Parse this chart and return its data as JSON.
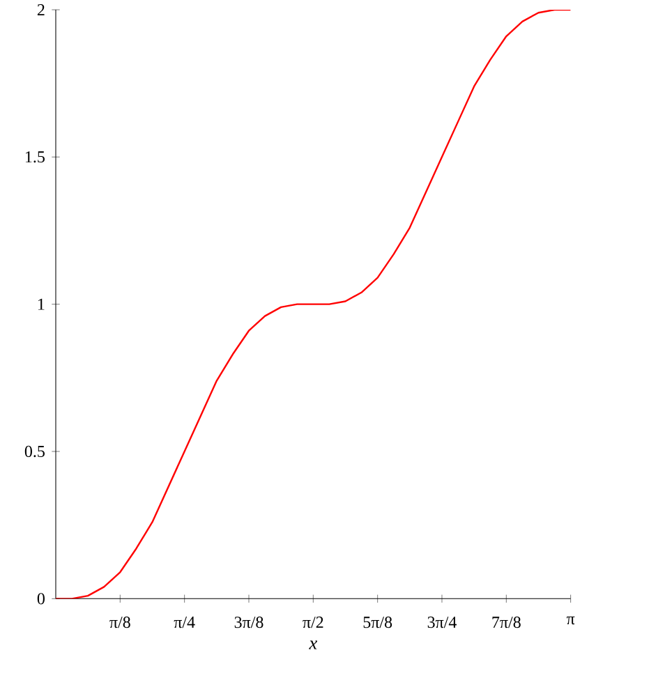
{
  "chart_data": {
    "type": "line",
    "xlabel": "x",
    "x": [
      0,
      0.0982,
      0.1963,
      0.2945,
      0.3927,
      0.4909,
      0.589,
      0.6872,
      0.7854,
      0.8836,
      0.9817,
      1.0799,
      1.1781,
      1.2763,
      1.3744,
      1.4726,
      1.5708,
      1.669,
      1.7671,
      1.8653,
      1.9635,
      2.0617,
      2.1598,
      2.258,
      2.3562,
      2.4544,
      2.5525,
      2.6507,
      2.7489,
      2.8471,
      2.9452,
      3.0434,
      3.1416
    ],
    "series": [
      {
        "color": "#ff0000",
        "values": [
          0,
          0.0,
          0.01,
          0.04,
          0.09,
          0.17,
          0.26,
          0.38,
          0.5,
          0.62,
          0.74,
          0.83,
          0.91,
          0.96,
          0.99,
          1.0,
          1.0,
          1.0,
          1.01,
          1.04,
          1.09,
          1.17,
          1.26,
          1.38,
          1.5,
          1.62,
          1.74,
          1.83,
          1.91,
          1.96,
          1.99,
          2.0,
          2.0
        ]
      }
    ],
    "xlim": [
      0,
      3.1416
    ],
    "ylim": [
      0,
      2
    ],
    "xticks": [
      {
        "value": 0.3927,
        "label": "π/8"
      },
      {
        "value": 0.7854,
        "label": "π/4"
      },
      {
        "value": 1.1781,
        "label": "3π/8"
      },
      {
        "value": 1.5708,
        "label": "π/2"
      },
      {
        "value": 1.9635,
        "label": "5π/8"
      },
      {
        "value": 2.3562,
        "label": "3π/4"
      },
      {
        "value": 2.7489,
        "label": "7π/8"
      },
      {
        "value": 3.1416,
        "label": "π"
      }
    ],
    "yticks": [
      0,
      0.5,
      1,
      1.5,
      2
    ],
    "grid": false,
    "marker": "none",
    "line_style": "solid"
  }
}
